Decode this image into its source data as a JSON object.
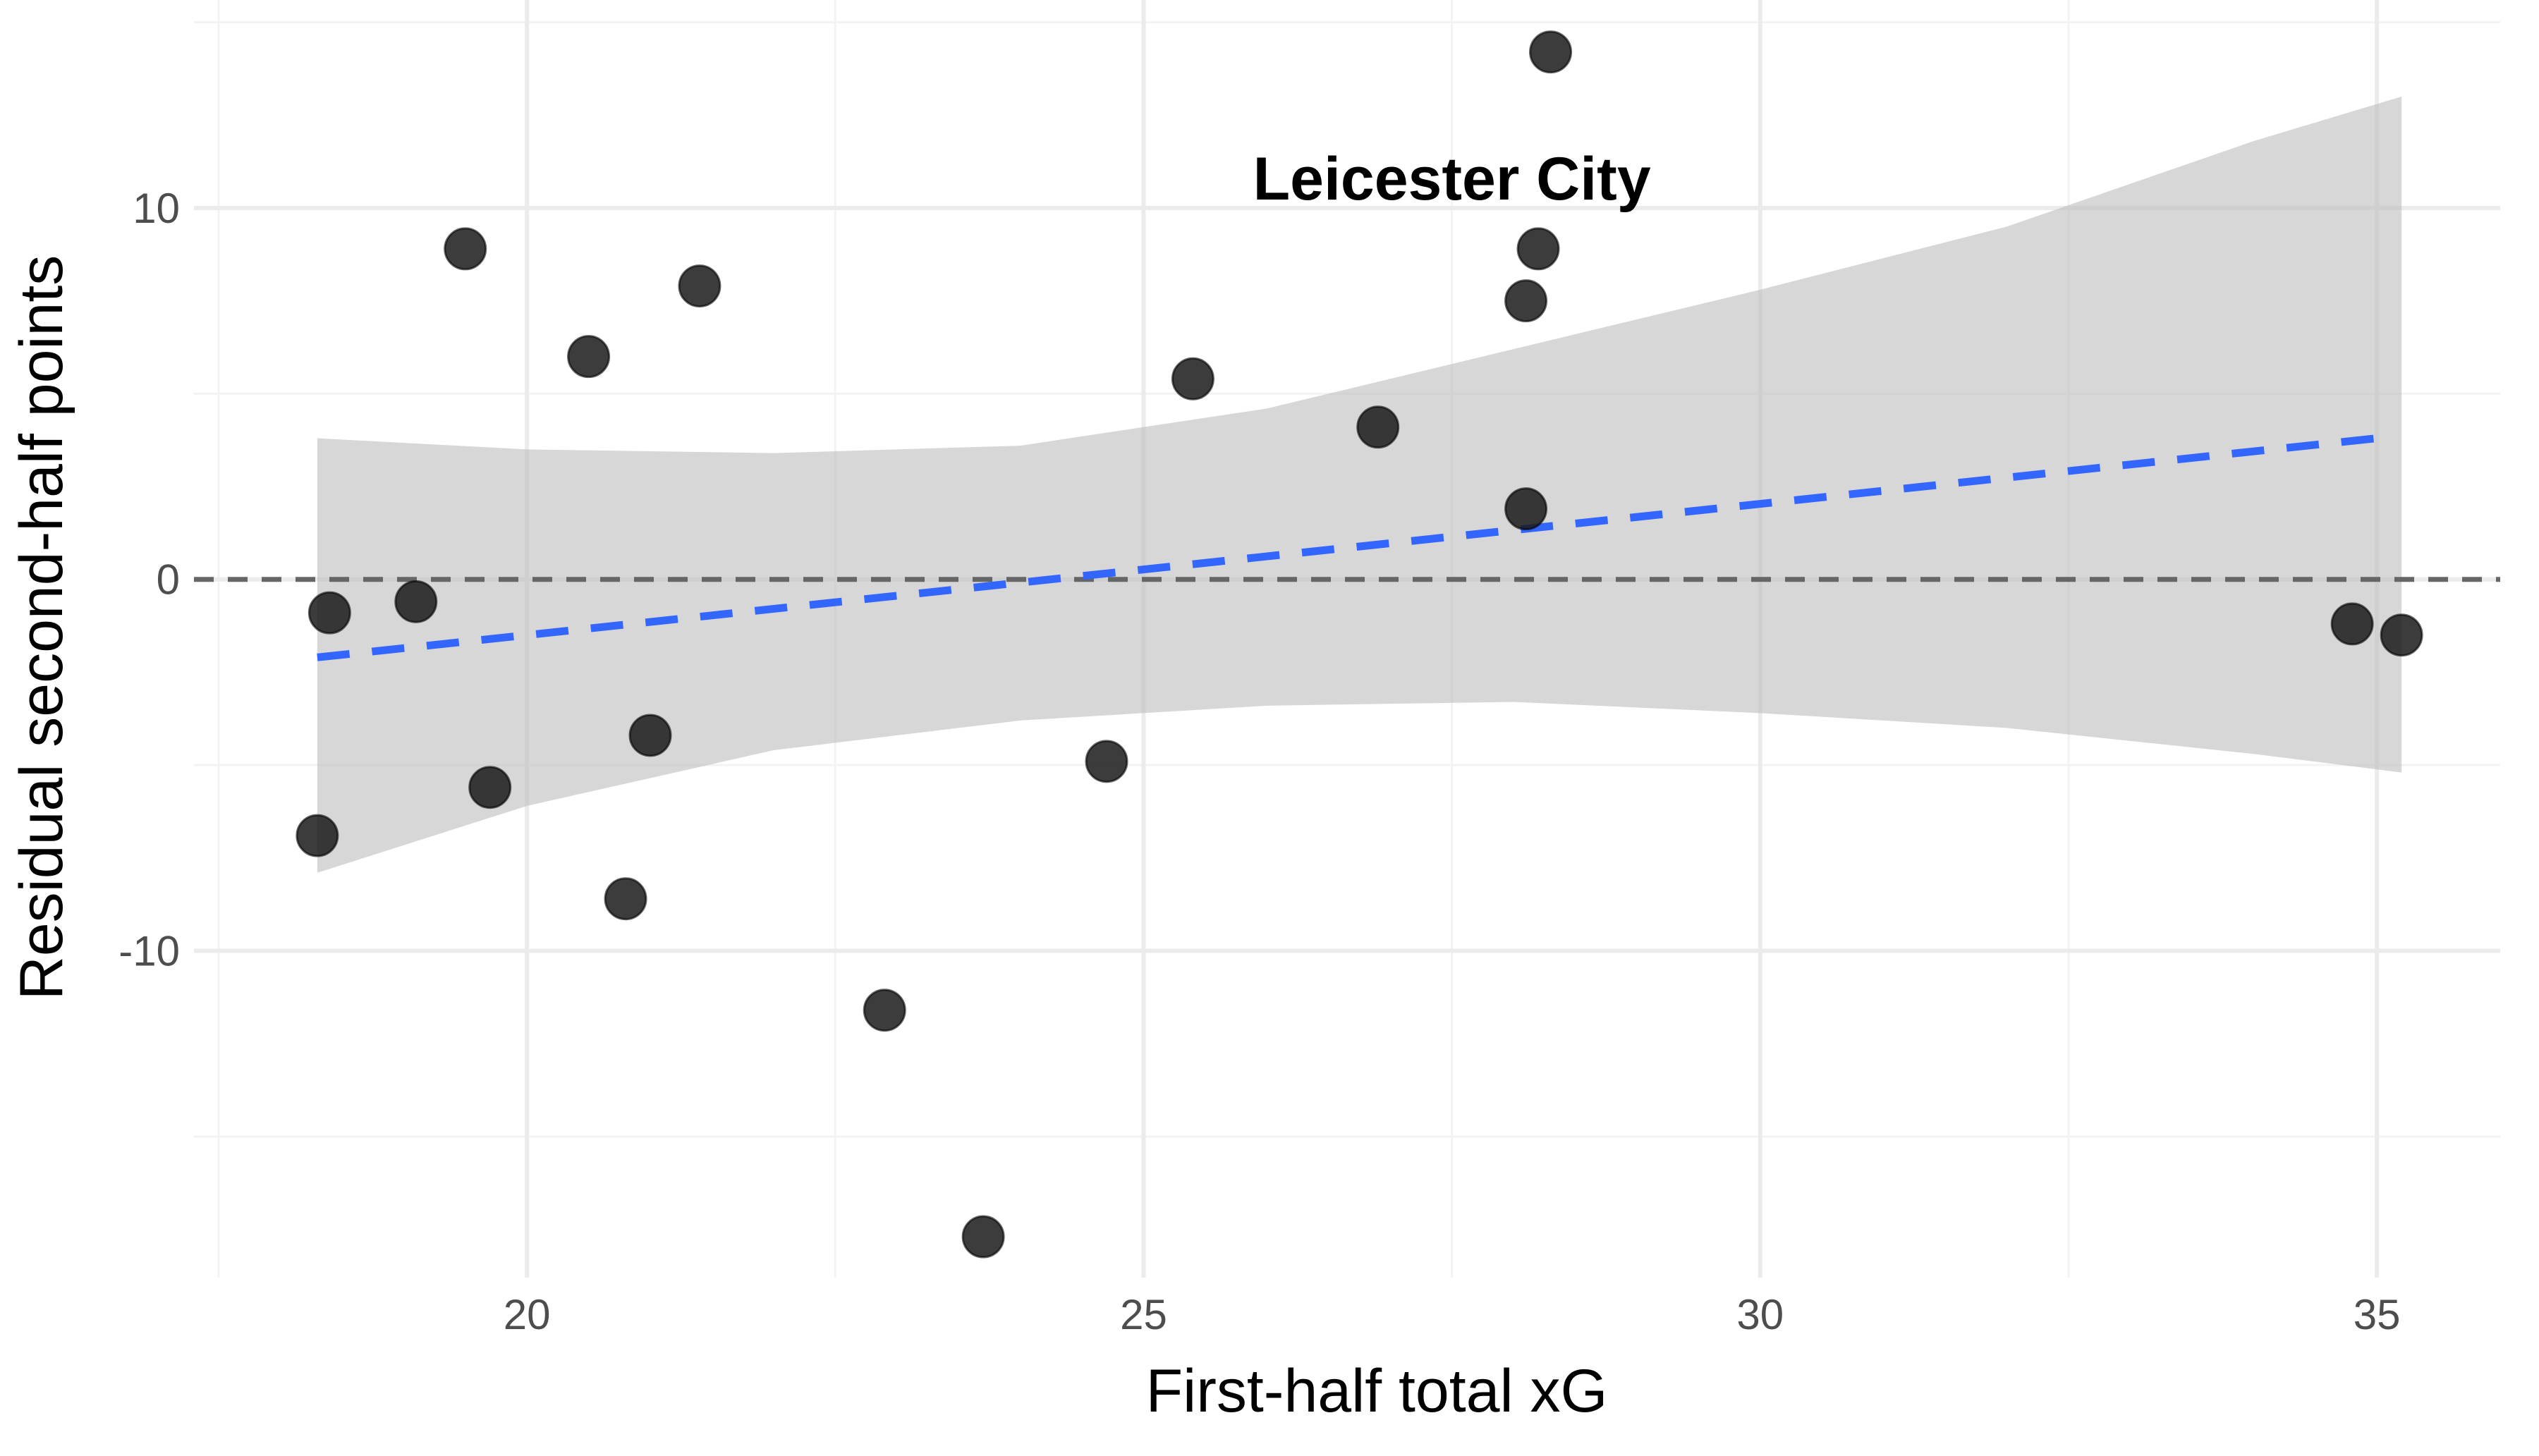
{
  "chart_data": {
    "type": "scatter",
    "title": "",
    "xlabel": "First-half total xG",
    "ylabel": "Residual second-half points",
    "xlim": [
      17.3,
      36.0
    ],
    "ylim": [
      -18.8,
      15.6
    ],
    "grid": true,
    "x_ticks": [
      20,
      25,
      30,
      35
    ],
    "x_tick_labels": [
      "20",
      "25",
      "30",
      "35"
    ],
    "y_ticks": [
      -10,
      0,
      10
    ],
    "y_tick_labels": [
      "-10",
      "0",
      "10"
    ],
    "reference_line": {
      "y": 0,
      "style": "dashed",
      "color": "#666666"
    },
    "points": [
      {
        "x": 18.3,
        "y": -6.9
      },
      {
        "x": 18.4,
        "y": -0.9
      },
      {
        "x": 19.1,
        "y": -0.6
      },
      {
        "x": 19.5,
        "y": 8.9
      },
      {
        "x": 19.7,
        "y": -5.6
      },
      {
        "x": 20.5,
        "y": 6.0
      },
      {
        "x": 20.8,
        "y": -8.6
      },
      {
        "x": 21.0,
        "y": -4.2
      },
      {
        "x": 21.4,
        "y": 7.9
      },
      {
        "x": 22.9,
        "y": -11.6
      },
      {
        "x": 23.7,
        "y": -17.7
      },
      {
        "x": 24.7,
        "y": -4.9
      },
      {
        "x": 25.4,
        "y": 5.4
      },
      {
        "x": 26.9,
        "y": 4.1
      },
      {
        "x": 28.1,
        "y": 7.5
      },
      {
        "x": 28.1,
        "y": 1.9
      },
      {
        "x": 28.2,
        "y": 8.9
      },
      {
        "x": 28.3,
        "y": 14.2
      },
      {
        "x": 34.8,
        "y": -1.2
      },
      {
        "x": 35.2,
        "y": -1.5
      }
    ],
    "point_color": "#1a1a1a",
    "trend": {
      "method": "linear",
      "style": "dashed",
      "color": "#3366ff",
      "x": [
        18.3,
        35.0
      ],
      "y": [
        -2.1,
        3.8
      ]
    },
    "confidence_band": {
      "color": "#bdbdbd",
      "x": [
        18.3,
        20.0,
        22.0,
        24.0,
        26.0,
        28.0,
        30.0,
        32.0,
        34.0,
        35.2
      ],
      "upper": [
        3.8,
        3.5,
        3.4,
        3.6,
        4.6,
        6.2,
        7.8,
        9.5,
        11.8,
        13.0
      ],
      "lower": [
        -7.9,
        -6.1,
        -4.6,
        -3.8,
        -3.4,
        -3.3,
        -3.6,
        -4.0,
        -4.7,
        -5.2
      ]
    },
    "annotations": [
      {
        "text": "Leicester City",
        "x": 27.5,
        "y": 10.8
      }
    ]
  }
}
